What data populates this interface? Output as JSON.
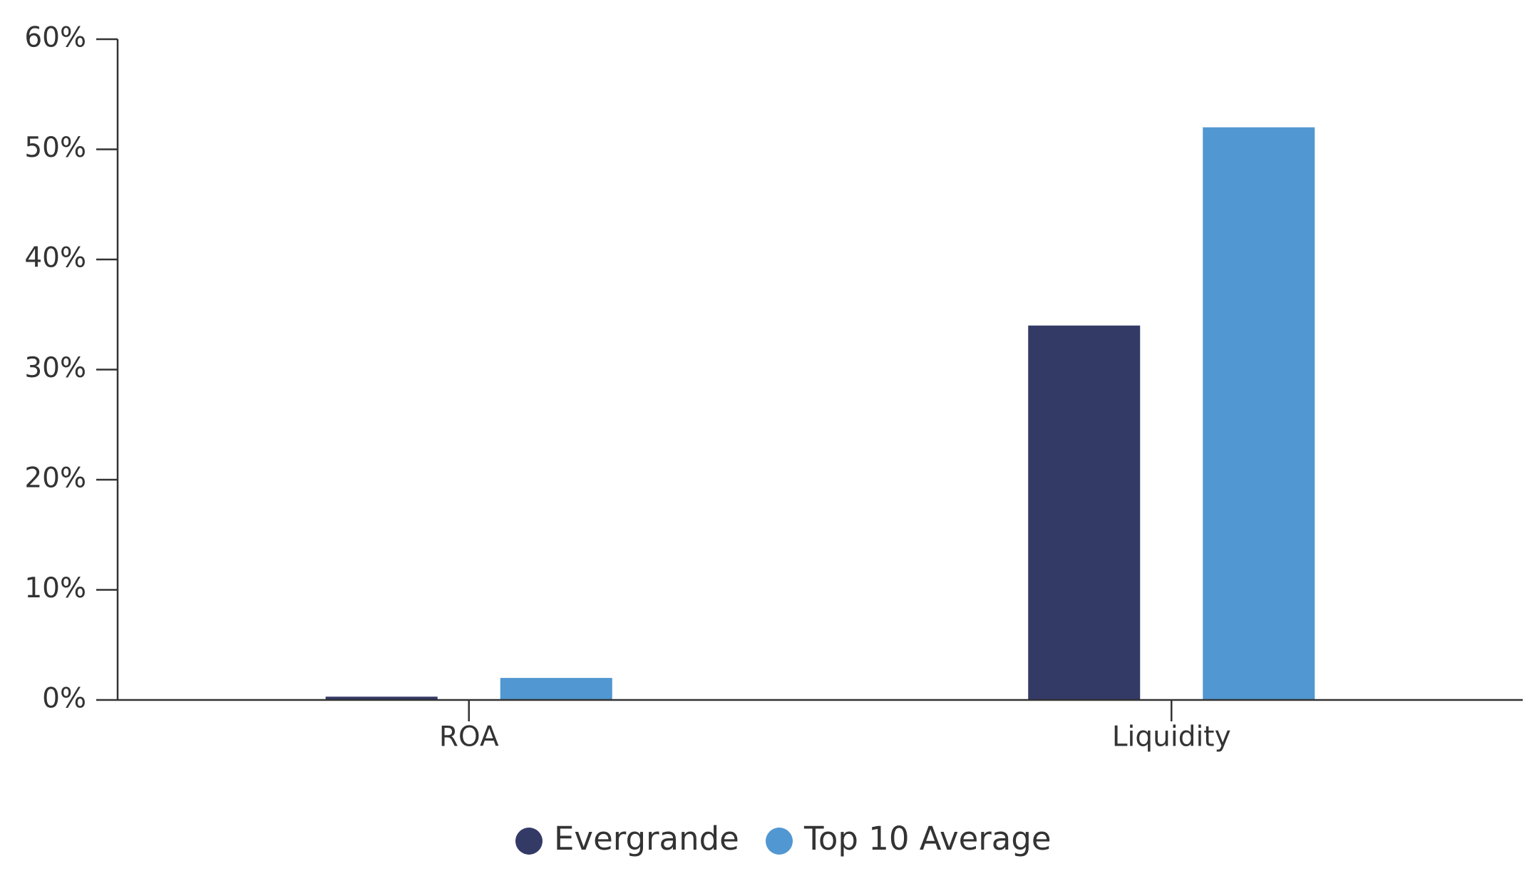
{
  "chart_data": {
    "type": "bar",
    "title": "",
    "xlabel": "",
    "ylabel": "",
    "categories": [
      "ROA",
      "Liquidity"
    ],
    "series": [
      {
        "name": "Evergrande",
        "values": [
          0.3,
          34.0
        ],
        "color": "#333a66"
      },
      {
        "name": "Top 10 Average",
        "values": [
          2.0,
          52.0
        ],
        "color": "#5197d1"
      }
    ],
    "ylim": [
      0,
      60
    ],
    "yticks": [
      0,
      10,
      20,
      30,
      40,
      50,
      60
    ],
    "ytick_labels": [
      "0%",
      "10%",
      "20%",
      "30%",
      "40%",
      "50%",
      "60%"
    ],
    "grid": false,
    "legend_position": "bottom-center"
  }
}
